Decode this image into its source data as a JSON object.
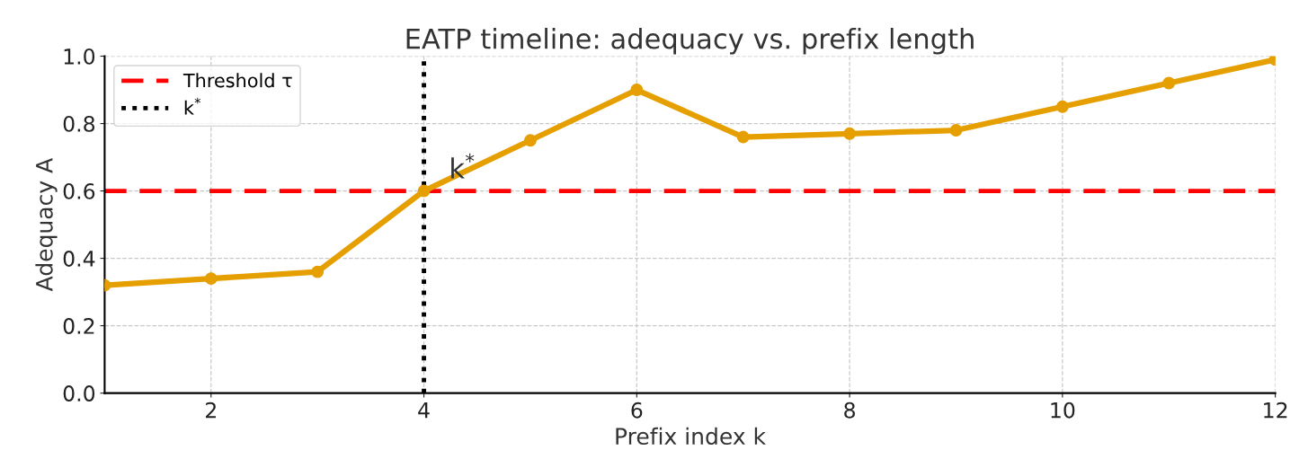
{
  "chart_data": {
    "type": "line",
    "title": "EATP timeline: adequacy vs. prefix length",
    "xlabel": "Prefix index k",
    "ylabel": "Adequacy A",
    "x": [
      1,
      2,
      3,
      4,
      5,
      6,
      7,
      8,
      9,
      10,
      11,
      12
    ],
    "series": [
      {
        "color": "#e69f00",
        "values": [
          0.32,
          0.34,
          0.36,
          0.6,
          0.75,
          0.9,
          0.76,
          0.77,
          0.78,
          0.85,
          0.92,
          0.99
        ]
      }
    ],
    "xlim": [
      1,
      12
    ],
    "xticks": [
      2,
      4,
      6,
      8,
      10,
      12
    ],
    "ylim": [
      0,
      1.0
    ],
    "yticks": [
      {
        "value": 0,
        "label": "0.0"
      },
      {
        "value": 0.2,
        "label": "0.2"
      },
      {
        "value": 0.4,
        "label": "0.4"
      },
      {
        "value": 0.6,
        "label": "0.6"
      },
      {
        "value": 0.8,
        "label": "0.8"
      },
      {
        "value": 1.0,
        "label": "1.0"
      }
    ],
    "ref_lines": [
      {
        "axis": "y",
        "value": 0.6,
        "label": "Threshold τ",
        "color": "#ff0000",
        "line_style": "dashed"
      },
      {
        "axis": "x",
        "value": 4,
        "label": "k$^{*}$",
        "color": "#000000",
        "line_style": "dotted"
      }
    ],
    "annotations": [
      {
        "text": "k$^{*}$",
        "x": 4,
        "y": 0.6
      }
    ],
    "grid": true,
    "legend": "top left",
    "marker": "circle",
    "line_style": "solid"
  }
}
